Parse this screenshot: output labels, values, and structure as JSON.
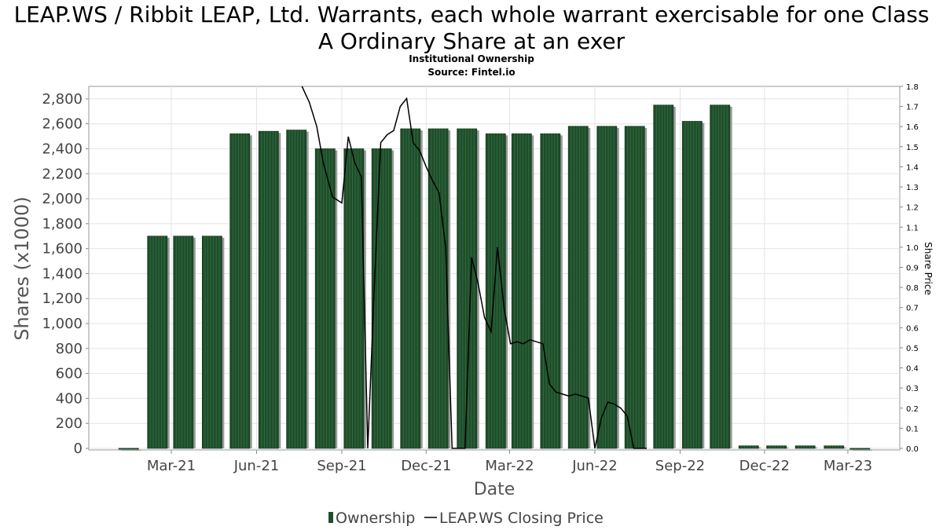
{
  "chart_data": {
    "type": "bar",
    "title_line1": "LEAP.WS / Ribbit LEAP, Ltd. Warrants, each whole warrant exercisable for one Class",
    "title_line2": "A Ordinary Share at an exer",
    "subtitle": "Institutional Ownership",
    "source": "Source: Fintel.io",
    "xlabel": "Date",
    "ylabel": "Shares (x1000)",
    "y2label": "Share Price",
    "ylim": [
      0,
      2900
    ],
    "y2lim": [
      0,
      1.8
    ],
    "grid": true,
    "legend_placement": "bottom",
    "x_ticks": [
      "Mar-21",
      "Jun-21",
      "Sep-21",
      "Dec-21",
      "Mar-22",
      "Jun-22",
      "Sep-22",
      "Dec-22",
      "Mar-23"
    ],
    "y_ticks": [
      "0",
      "200",
      "400",
      "600",
      "800",
      "1,000",
      "1,200",
      "1,400",
      "1,600",
      "1,800",
      "2,000",
      "2,200",
      "2,400",
      "2,600",
      "2,800"
    ],
    "y2_ticks": [
      "0.0",
      "0.1",
      "0.2",
      "0.3",
      "0.4",
      "0.5",
      "0.6",
      "0.7",
      "0.8",
      "0.9",
      "1.0",
      "1.1",
      "1.2",
      "1.3",
      "1.4",
      "1.5",
      "1.6",
      "1.7",
      "1.8"
    ],
    "series": [
      {
        "name": "Ownership",
        "kind": "bar",
        "color": "#1f4d2b",
        "x": [
          "2021-01-01",
          "2021-02-01",
          "2021-03-01",
          "2021-04-01",
          "2021-05-01",
          "2021-06-01",
          "2021-07-01",
          "2021-08-01",
          "2021-09-01",
          "2021-10-01",
          "2021-11-01",
          "2021-12-01",
          "2022-01-01",
          "2022-02-01",
          "2022-03-01",
          "2022-04-01",
          "2022-05-01",
          "2022-06-01",
          "2022-07-01",
          "2022-08-01",
          "2022-09-01",
          "2022-10-01",
          "2022-11-01",
          "2022-12-01",
          "2023-01-01",
          "2023-02-01",
          "2023-03-01"
        ],
        "values": [
          0,
          1700,
          1700,
          1700,
          2520,
          2540,
          2550,
          2400,
          2400,
          2400,
          2560,
          2560,
          2560,
          2520,
          2520,
          2520,
          2580,
          2580,
          2580,
          2750,
          2620,
          2750,
          20,
          20,
          20,
          20,
          0
        ]
      },
      {
        "name": "LEAP.WS Closing Price",
        "kind": "line",
        "color": "#000000",
        "x": [
          "2021-07-20",
          "2021-07-28",
          "2021-08-05",
          "2021-08-12",
          "2021-08-22",
          "2021-09-01",
          "2021-09-08",
          "2021-09-15",
          "2021-09-22",
          "2021-09-29",
          "2021-10-06",
          "2021-10-13",
          "2021-10-20",
          "2021-10-27",
          "2021-11-03",
          "2021-11-10",
          "2021-11-17",
          "2021-11-24",
          "2021-12-01",
          "2021-12-08",
          "2021-12-15",
          "2021-12-22",
          "2021-12-29",
          "2022-01-05",
          "2022-01-12",
          "2022-01-19",
          "2022-01-26",
          "2022-02-02",
          "2022-02-09",
          "2022-02-16",
          "2022-02-23",
          "2022-03-02",
          "2022-03-09",
          "2022-03-16",
          "2022-03-23",
          "2022-03-30",
          "2022-04-06",
          "2022-04-13",
          "2022-04-20",
          "2022-04-27",
          "2022-05-04",
          "2022-05-11",
          "2022-05-18",
          "2022-05-25",
          "2022-06-01",
          "2022-06-08",
          "2022-06-15",
          "2022-06-22",
          "2022-06-29",
          "2022-07-06",
          "2022-07-13",
          "2022-07-20",
          "2022-07-27"
        ],
        "values": [
          1.8,
          1.72,
          1.6,
          1.42,
          1.25,
          1.22,
          1.55,
          1.42,
          1.35,
          0.0,
          0.8,
          1.52,
          1.56,
          1.58,
          1.7,
          1.74,
          1.52,
          1.48,
          1.4,
          1.33,
          1.27,
          1.0,
          0.0,
          0.0,
          0.0,
          0.95,
          0.82,
          0.65,
          0.58,
          1.0,
          0.7,
          0.52,
          0.53,
          0.52,
          0.54,
          0.53,
          0.52,
          0.32,
          0.28,
          0.27,
          0.26,
          0.27,
          0.26,
          0.25,
          0.0,
          0.15,
          0.23,
          0.22,
          0.2,
          0.16,
          0.0,
          0.0,
          0.0
        ]
      }
    ]
  }
}
